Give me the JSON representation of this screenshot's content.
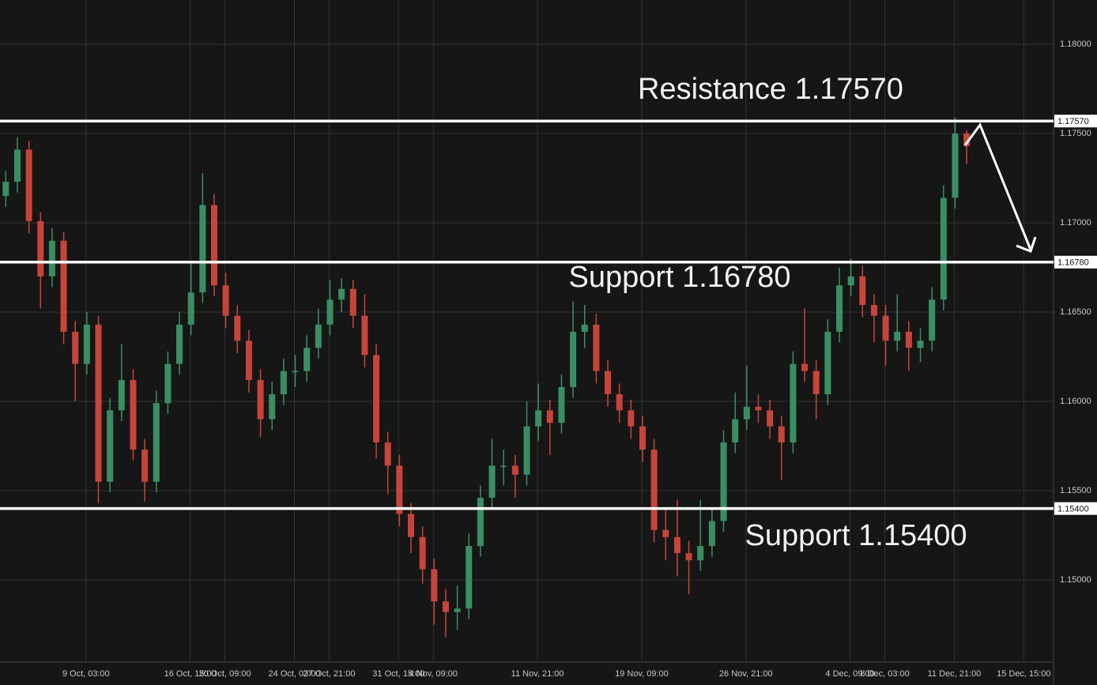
{
  "chart_data": {
    "type": "candlestick",
    "colors": {
      "up": "#3a8f62",
      "down": "#c8443a"
    },
    "xlim": [
      0,
      1274
    ],
    "xticks": [
      {
        "value": 104,
        "label": "9 Oct, 03:00"
      },
      {
        "value": 230,
        "label": "16 Oct, 15:00"
      },
      {
        "value": 272,
        "label": "20 Oct, 09:00"
      },
      {
        "value": 356,
        "label": "24 Oct, 03:00"
      },
      {
        "value": 398,
        "label": "27 Oct, 21:00"
      },
      {
        "value": 482,
        "label": "31 Oct, 15:00"
      },
      {
        "value": 524,
        "label": "4 Nov, 09:00"
      },
      {
        "value": 650,
        "label": "11 Nov, 21:00"
      },
      {
        "value": 776,
        "label": "19 Nov, 09:00"
      },
      {
        "value": 902,
        "label": "26 Nov, 21:00"
      },
      {
        "value": 1028,
        "label": "4 Dec, 09:00"
      },
      {
        "value": 1070,
        "label": "8 Dec, 03:00"
      },
      {
        "value": 1154,
        "label": "11 Dec, 21:00"
      },
      {
        "value": 1238,
        "label": "15 Dec, 15:00"
      }
    ],
    "ylim": [
      1.1454,
      1.18248
    ],
    "yticks": [
      {
        "value": 1.15,
        "label": "1.15000"
      },
      {
        "value": 1.155,
        "label": "1.15500"
      },
      {
        "value": 1.16,
        "label": "1.16000"
      },
      {
        "value": 1.165,
        "label": "1.16500"
      },
      {
        "value": 1.17,
        "label": "1.17000"
      },
      {
        "value": 1.175,
        "label": "1.17500"
      },
      {
        "value": 1.18,
        "label": "1.18000"
      }
    ],
    "grid": true,
    "levels": [
      {
        "value": 1.1757,
        "label": "1.17570",
        "text": "Resistance 1.17570"
      },
      {
        "value": 1.1678,
        "label": "1.16780",
        "text": "Support 1.16780"
      },
      {
        "value": 1.154,
        "label": "1.15400",
        "text": "Support 1.15400"
      }
    ],
    "candles": {
      "x": [
        7,
        21,
        35,
        49,
        63,
        77,
        91,
        105,
        119,
        133,
        147,
        161,
        175,
        189,
        203,
        217,
        231,
        245,
        259,
        273,
        287,
        301,
        315,
        329,
        343,
        357,
        371,
        385,
        399,
        413,
        427,
        441,
        455,
        469,
        483,
        497,
        511,
        525,
        539,
        553,
        567,
        581,
        595,
        609,
        623,
        637,
        651,
        665,
        679,
        693,
        707,
        721,
        735,
        749,
        763,
        777,
        791,
        805,
        819,
        833,
        847,
        861,
        875,
        889,
        903,
        917,
        931,
        945,
        959,
        973,
        987,
        1001,
        1015,
        1029,
        1043,
        1057,
        1071,
        1085,
        1099,
        1113,
        1127,
        1141,
        1155,
        1169
      ],
      "open": [
        1.1715,
        1.1723,
        1.1741,
        1.1701,
        1.167,
        1.169,
        1.1639,
        1.1621,
        1.1643,
        1.1555,
        1.1595,
        1.1612,
        1.1573,
        1.1555,
        1.1599,
        1.1621,
        1.1643,
        1.1661,
        1.171,
        1.1665,
        1.1648,
        1.1634,
        1.1612,
        1.159,
        1.1604,
        1.1617,
        1.1617,
        1.163,
        1.1643,
        1.1657,
        1.1663,
        1.1648,
        1.1626,
        1.1577,
        1.1564,
        1.1537,
        1.1524,
        1.1506,
        1.1488,
        1.1482,
        1.1484,
        1.1519,
        1.1546,
        1.1564,
        1.1564,
        1.1559,
        1.1586,
        1.1595,
        1.1588,
        1.1608,
        1.1639,
        1.1643,
        1.1617,
        1.1604,
        1.1595,
        1.1586,
        1.1573,
        1.1528,
        1.1524,
        1.1515,
        1.1511,
        1.1519,
        1.1533,
        1.1577,
        1.159,
        1.1597,
        1.1595,
        1.1586,
        1.1577,
        1.1621,
        1.1617,
        1.1604,
        1.1639,
        1.1665,
        1.167,
        1.1654,
        1.1648,
        1.1634,
        1.1639,
        1.163,
        1.1634,
        1.1657,
        1.1714,
        1.175
      ],
      "high": [
        1.1729,
        1.1748,
        1.1746,
        1.1706,
        1.1697,
        1.1695,
        1.1645,
        1.165,
        1.1648,
        1.1602,
        1.1632,
        1.1618,
        1.1579,
        1.1606,
        1.1628,
        1.165,
        1.1678,
        1.1728,
        1.1716,
        1.1672,
        1.1654,
        1.164,
        1.1618,
        1.1611,
        1.1624,
        1.1626,
        1.1637,
        1.1652,
        1.1668,
        1.1669,
        1.1668,
        1.166,
        1.1632,
        1.1583,
        1.157,
        1.1543,
        1.153,
        1.1512,
        1.1495,
        1.1497,
        1.1526,
        1.1553,
        1.1579,
        1.1573,
        1.157,
        1.16,
        1.161,
        1.1601,
        1.1615,
        1.1656,
        1.1654,
        1.1649,
        1.1623,
        1.161,
        1.1601,
        1.1592,
        1.1579,
        1.154,
        1.1545,
        1.1522,
        1.1545,
        1.154,
        1.1584,
        1.1605,
        1.162,
        1.1604,
        1.1601,
        1.1592,
        1.1628,
        1.1652,
        1.1623,
        1.1646,
        1.1675,
        1.168,
        1.1676,
        1.166,
        1.1654,
        1.166,
        1.1645,
        1.1641,
        1.1664,
        1.1721,
        1.1759,
        1.1752
      ],
      "low": [
        1.1709,
        1.1717,
        1.1694,
        1.1652,
        1.1664,
        1.1632,
        1.16,
        1.1615,
        1.1543,
        1.1549,
        1.1589,
        1.1567,
        1.1544,
        1.1549,
        1.1593,
        1.1615,
        1.1637,
        1.1655,
        1.1659,
        1.1641,
        1.1627,
        1.1605,
        1.158,
        1.1584,
        1.1598,
        1.1608,
        1.1611,
        1.1624,
        1.1637,
        1.165,
        1.1641,
        1.1619,
        1.1568,
        1.1548,
        1.153,
        1.1515,
        1.1498,
        1.1475,
        1.1468,
        1.1472,
        1.1478,
        1.1513,
        1.154,
        1.1553,
        1.1546,
        1.1553,
        1.1578,
        1.157,
        1.1582,
        1.1602,
        1.163,
        1.161,
        1.1597,
        1.1588,
        1.1579,
        1.1566,
        1.1521,
        1.1511,
        1.1502,
        1.1492,
        1.1505,
        1.1513,
        1.1527,
        1.1571,
        1.1584,
        1.1588,
        1.1579,
        1.1556,
        1.1571,
        1.1611,
        1.159,
        1.1598,
        1.1633,
        1.1659,
        1.1647,
        1.1633,
        1.162,
        1.1628,
        1.1617,
        1.1622,
        1.1628,
        1.1651,
        1.1708,
        1.1733
      ],
      "close": [
        1.1723,
        1.1741,
        1.1701,
        1.167,
        1.169,
        1.1639,
        1.1621,
        1.1643,
        1.1555,
        1.1595,
        1.1612,
        1.1573,
        1.1555,
        1.1599,
        1.1621,
        1.1643,
        1.1661,
        1.171,
        1.1665,
        1.1648,
        1.1634,
        1.1612,
        1.159,
        1.1604,
        1.1617,
        1.1617,
        1.163,
        1.1643,
        1.1657,
        1.1663,
        1.1648,
        1.1626,
        1.1577,
        1.1564,
        1.1537,
        1.1524,
        1.1506,
        1.1488,
        1.1482,
        1.1484,
        1.1519,
        1.1546,
        1.1564,
        1.1564,
        1.1559,
        1.1586,
        1.1595,
        1.1588,
        1.1608,
        1.1639,
        1.1643,
        1.1617,
        1.1604,
        1.1595,
        1.1586,
        1.1573,
        1.1528,
        1.1524,
        1.1515,
        1.1511,
        1.1519,
        1.1533,
        1.1577,
        1.159,
        1.1597,
        1.1595,
        1.1586,
        1.1577,
        1.1621,
        1.1617,
        1.1604,
        1.1639,
        1.1665,
        1.167,
        1.1654,
        1.1648,
        1.1634,
        1.1639,
        1.163,
        1.1634,
        1.1657,
        1.1714,
        1.175,
        1.1743
      ]
    }
  }
}
